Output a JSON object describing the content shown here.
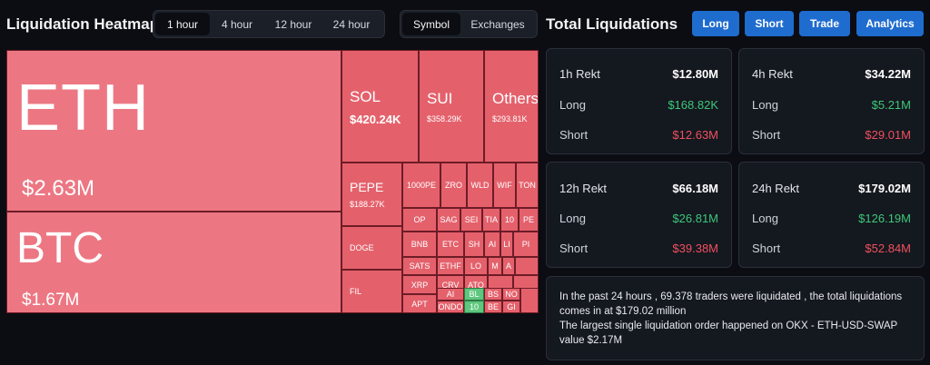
{
  "header": {
    "title": "Liquidation Heatmap",
    "timeframes": [
      "1 hour",
      "4 hour",
      "12 hour",
      "24 hour"
    ],
    "active_timeframe": "1 hour",
    "view_tabs": [
      "Symbol",
      "Exchanges"
    ],
    "active_view": "Symbol"
  },
  "right_header": {
    "title": "Total Liquidations",
    "buttons": [
      "Long",
      "Short",
      "Trade",
      "Analytics"
    ]
  },
  "heatmap": {
    "eth": {
      "symbol": "ETH",
      "value": "$2.63M"
    },
    "btc": {
      "symbol": "BTC",
      "value": "$1.67M"
    },
    "sol": {
      "symbol": "SOL",
      "value": "$420.24K"
    },
    "sui": {
      "symbol": "SUI",
      "value": "$358.29K"
    },
    "others": {
      "symbol": "Others",
      "value": "$293.81K"
    },
    "pepe": {
      "symbol": "PEPE",
      "value": "$188.27K"
    },
    "small": [
      "1000PE",
      "ZRO",
      "WLD",
      "WIF",
      "TON",
      "OP",
      "SAG",
      "SEI",
      "TIA",
      "10",
      "PE",
      "DOGE",
      "BNB",
      "ETC",
      "SH",
      "AI",
      "LI",
      "PI",
      "SATS",
      "ETHF",
      "LO",
      "M",
      "A",
      "FIL",
      "XRP",
      "CRV",
      "ATO",
      "AI",
      "APT",
      "ONDO",
      "BL",
      "BS",
      "NO",
      "10",
      "BE",
      "GI"
    ]
  },
  "cards": [
    {
      "period": "1h Rekt",
      "total": "$12.80M",
      "long_label": "Long",
      "long": "$168.82K",
      "short_label": "Short",
      "short": "$12.63M"
    },
    {
      "period": "4h Rekt",
      "total": "$34.22M",
      "long_label": "Long",
      "long": "$5.21M",
      "short_label": "Short",
      "short": "$29.01M"
    },
    {
      "period": "12h Rekt",
      "total": "$66.18M",
      "long_label": "Long",
      "long": "$26.81M",
      "short_label": "Short",
      "short": "$39.38M"
    },
    {
      "period": "24h Rekt",
      "total": "$179.02M",
      "long_label": "Long",
      "long": "$126.19M",
      "short_label": "Short",
      "short": "$52.84M"
    }
  ],
  "info": {
    "line1": "In the past 24 hours , 69.378 traders were liquidated , the total liquidations comes in at $179.02 million",
    "line2": "The largest single liquidation order happened on OKX - ETH-USD-SWAP value $2.17M"
  }
}
